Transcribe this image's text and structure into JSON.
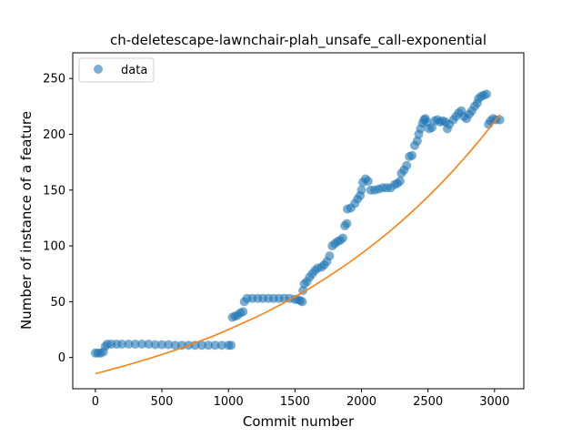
{
  "chart_data": {
    "type": "scatter",
    "title": "ch-deletescape-lawnchair-plah_unsafe_call-exponential",
    "xlabel": "Commit number",
    "ylabel": "Number of instance of a feature",
    "xlim": [
      -170,
      3220
    ],
    "ylim": [
      -28,
      273
    ],
    "xticks": [
      0,
      500,
      1000,
      1500,
      2000,
      2500,
      3000
    ],
    "yticks": [
      0,
      50,
      100,
      150,
      200,
      250
    ],
    "grid": false,
    "legend": {
      "placement": "upper-left",
      "entries": [
        {
          "label": "data",
          "color": "#1f77b4",
          "marker": "circle"
        }
      ]
    },
    "series": [
      {
        "name": "data",
        "kind": "scatter",
        "color": "#1f77b4",
        "points": [
          [
            0,
            4
          ],
          [
            20,
            4
          ],
          [
            40,
            4
          ],
          [
            60,
            5
          ],
          [
            75,
            10
          ],
          [
            90,
            12
          ],
          [
            120,
            12
          ],
          [
            160,
            12
          ],
          [
            200,
            12
          ],
          [
            250,
            12
          ],
          [
            300,
            12
          ],
          [
            350,
            12
          ],
          [
            400,
            12
          ],
          [
            450,
            11.5
          ],
          [
            500,
            11.5
          ],
          [
            550,
            11.5
          ],
          [
            600,
            11
          ],
          [
            650,
            11
          ],
          [
            700,
            11
          ],
          [
            750,
            11
          ],
          [
            800,
            11
          ],
          [
            850,
            11
          ],
          [
            900,
            11
          ],
          [
            950,
            11
          ],
          [
            1000,
            11
          ],
          [
            1020,
            11
          ],
          [
            1030,
            36
          ],
          [
            1050,
            37
          ],
          [
            1070,
            38
          ],
          [
            1090,
            40
          ],
          [
            1110,
            41
          ],
          [
            1120,
            50
          ],
          [
            1140,
            53
          ],
          [
            1180,
            53
          ],
          [
            1220,
            53
          ],
          [
            1260,
            53
          ],
          [
            1300,
            53
          ],
          [
            1340,
            53
          ],
          [
            1380,
            53
          ],
          [
            1420,
            53
          ],
          [
            1460,
            53
          ],
          [
            1500,
            52
          ],
          [
            1520,
            52
          ],
          [
            1540,
            51
          ],
          [
            1555,
            50
          ],
          [
            1560,
            60
          ],
          [
            1570,
            66
          ],
          [
            1590,
            68
          ],
          [
            1610,
            72
          ],
          [
            1630,
            75
          ],
          [
            1650,
            78
          ],
          [
            1670,
            80
          ],
          [
            1700,
            81
          ],
          [
            1720,
            83
          ],
          [
            1740,
            86
          ],
          [
            1760,
            91
          ],
          [
            1780,
            100
          ],
          [
            1800,
            102
          ],
          [
            1820,
            104
          ],
          [
            1840,
            105
          ],
          [
            1860,
            107
          ],
          [
            1875,
            118
          ],
          [
            1890,
            120
          ],
          [
            1895,
            133
          ],
          [
            1920,
            134
          ],
          [
            1950,
            138
          ],
          [
            1970,
            142
          ],
          [
            1990,
            145
          ],
          [
            2000,
            150
          ],
          [
            2010,
            157
          ],
          [
            2030,
            160
          ],
          [
            2050,
            158
          ],
          [
            2070,
            150
          ],
          [
            2100,
            150
          ],
          [
            2130,
            151
          ],
          [
            2160,
            152
          ],
          [
            2190,
            152
          ],
          [
            2220,
            152
          ],
          [
            2250,
            155
          ],
          [
            2270,
            156
          ],
          [
            2290,
            158
          ],
          [
            2300,
            165
          ],
          [
            2320,
            168
          ],
          [
            2340,
            172
          ],
          [
            2360,
            180
          ],
          [
            2380,
            181
          ],
          [
            2400,
            190
          ],
          [
            2420,
            194
          ],
          [
            2430,
            200
          ],
          [
            2445,
            205
          ],
          [
            2460,
            210
          ],
          [
            2470,
            213
          ],
          [
            2480,
            214
          ],
          [
            2490,
            211
          ],
          [
            2510,
            205
          ],
          [
            2530,
            206
          ],
          [
            2550,
            212
          ],
          [
            2570,
            213
          ],
          [
            2590,
            211
          ],
          [
            2610,
            212
          ],
          [
            2630,
            211
          ],
          [
            2645,
            205
          ],
          [
            2660,
            209
          ],
          [
            2690,
            213
          ],
          [
            2710,
            216
          ],
          [
            2730,
            219
          ],
          [
            2750,
            221
          ],
          [
            2770,
            216
          ],
          [
            2790,
            214
          ],
          [
            2810,
            218
          ],
          [
            2830,
            221
          ],
          [
            2850,
            225
          ],
          [
            2870,
            228
          ],
          [
            2880,
            232
          ],
          [
            2900,
            234
          ],
          [
            2920,
            235
          ],
          [
            2940,
            236
          ],
          [
            2955,
            209
          ],
          [
            2970,
            212
          ],
          [
            2990,
            214
          ],
          [
            3010,
            213
          ],
          [
            3040,
            213
          ]
        ]
      },
      {
        "name": "",
        "kind": "line",
        "color": "#ff7f0e",
        "points": [
          [
            0,
            -14.5
          ],
          [
            100,
            -11.3
          ],
          [
            200,
            -8.1
          ],
          [
            300,
            -4.7
          ],
          [
            400,
            -1.1
          ],
          [
            500,
            2.7
          ],
          [
            600,
            6.6
          ],
          [
            700,
            10.8
          ],
          [
            800,
            15.3
          ],
          [
            900,
            20.0
          ],
          [
            1000,
            25.0
          ],
          [
            1100,
            30.3
          ],
          [
            1200,
            35.8
          ],
          [
            1300,
            41.6
          ],
          [
            1400,
            47.9
          ],
          [
            1500,
            54.4
          ],
          [
            1600,
            61.3
          ],
          [
            1700,
            68.6
          ],
          [
            1800,
            76.3
          ],
          [
            1900,
            84.5
          ],
          [
            2000,
            93.1
          ],
          [
            2100,
            102.2
          ],
          [
            2200,
            111.8
          ],
          [
            2300,
            122.0
          ],
          [
            2400,
            132.8
          ],
          [
            2500,
            144.1
          ],
          [
            2600,
            156.1
          ],
          [
            2700,
            168.8
          ],
          [
            2800,
            182.2
          ],
          [
            2900,
            196.4
          ],
          [
            3000,
            211.3
          ],
          [
            3040,
            217.5
          ]
        ]
      }
    ]
  }
}
